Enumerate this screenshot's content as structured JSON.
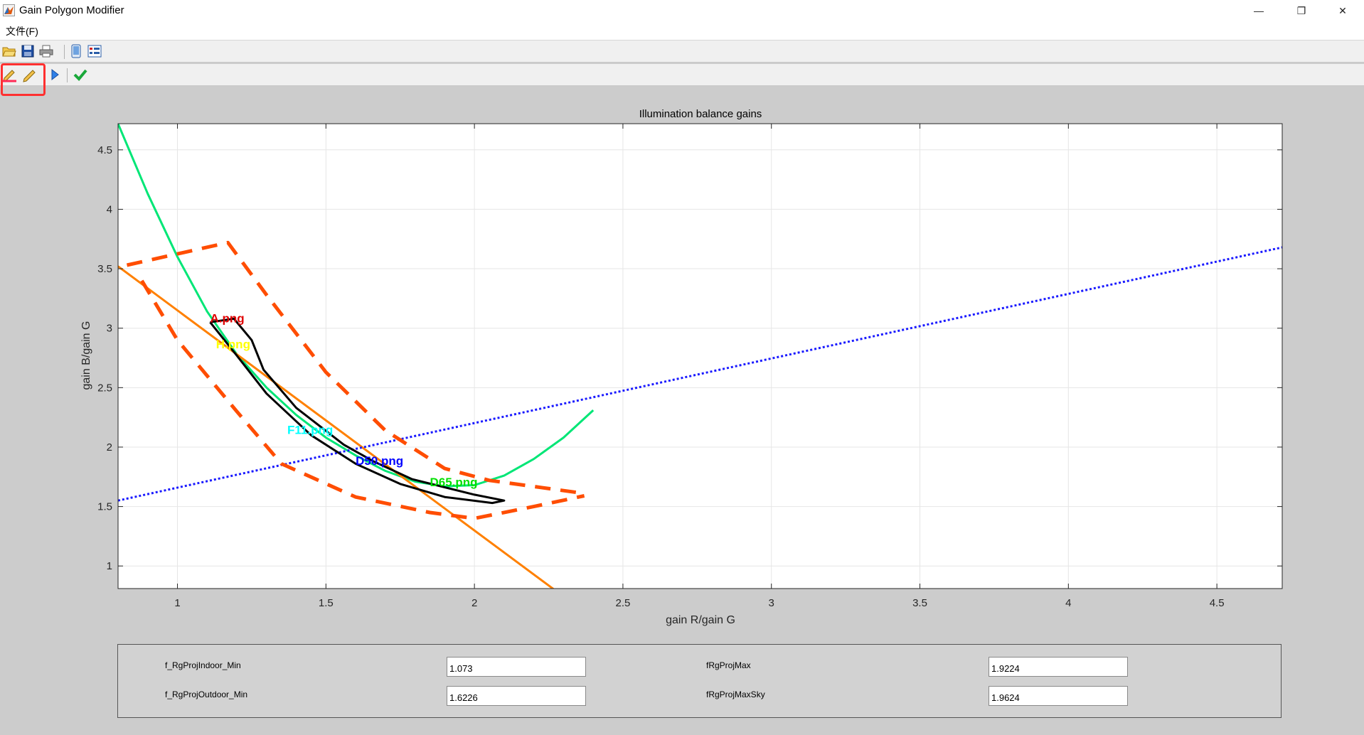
{
  "window": {
    "title": "Gain Polygon Modifier",
    "minimize": "—",
    "restore": "❐",
    "close": "✕"
  },
  "menu": {
    "file": "文件(F)"
  },
  "toolbar_row1": [
    {
      "icon": "open-folder-icon"
    },
    {
      "icon": "save-icon"
    },
    {
      "icon": "print-icon"
    },
    {
      "icon": "device-icon"
    },
    {
      "icon": "property-inspector-icon"
    }
  ],
  "toolbar_row2": [
    {
      "icon": "red-pen-icon"
    },
    {
      "icon": "yellow-pen-icon"
    },
    {
      "icon": "play-arrow-icon"
    },
    {
      "icon": "checkmark-icon"
    }
  ],
  "chart_data": {
    "type": "line",
    "title": "Illumination balance gains",
    "xlabel": "gain R/gain G",
    "ylabel": "gain B/gain G",
    "xlim": [
      0.8,
      4.72
    ],
    "ylim": [
      0.81,
      4.72
    ],
    "xticks": [
      1,
      1.5,
      2,
      2.5,
      3,
      3.5,
      4,
      4.5
    ],
    "yticks": [
      1,
      1.5,
      2,
      2.5,
      3,
      3.5,
      4,
      4.5
    ],
    "grid": true,
    "series": [
      {
        "style": "solid",
        "color": "#00e676",
        "x": [
          0.8,
          0.9,
          1.0,
          1.1,
          1.2,
          1.3,
          1.4,
          1.5,
          1.6,
          1.7,
          1.8,
          1.9,
          2.0,
          2.1,
          2.2,
          2.3,
          2.4
        ],
        "y": [
          4.72,
          4.13,
          3.6,
          3.14,
          2.78,
          2.5,
          2.27,
          2.08,
          1.93,
          1.8,
          1.71,
          1.67,
          1.68,
          1.76,
          1.9,
          2.08,
          2.31
        ]
      },
      {
        "style": "solid",
        "color": "#ff8000",
        "x": [
          0.8,
          2.28
        ],
        "y": [
          3.52,
          0.78
        ]
      },
      {
        "style": "dotted",
        "color": "#1a1aff",
        "x": [
          0.8,
          4.72
        ],
        "y": [
          1.55,
          3.68
        ]
      },
      {
        "style": "dashed",
        "color": "#ff4d00",
        "x": [
          0.83,
          1.17,
          1.3,
          1.5,
          1.7,
          1.9,
          2.05,
          2.37
        ],
        "y": [
          3.53,
          3.72,
          3.28,
          2.63,
          2.14,
          1.82,
          1.72,
          1.61
        ]
      },
      {
        "style": "dashed",
        "color": "#ff4d00",
        "x": [
          0.88,
          1.0,
          1.2,
          1.35,
          1.6,
          1.85,
          2.0,
          2.2,
          2.37
        ],
        "y": [
          3.4,
          2.9,
          2.3,
          1.86,
          1.58,
          1.45,
          1.4,
          1.5,
          1.59
        ]
      },
      {
        "style": "solid",
        "color": "#000000",
        "x": [
          1.11,
          1.19,
          1.25,
          1.29,
          1.4,
          1.56,
          1.66,
          1.79,
          2.0,
          2.1,
          2.06,
          1.9,
          1.75,
          1.6,
          1.45,
          1.3,
          1.2,
          1.11
        ],
        "y": [
          3.05,
          3.08,
          2.9,
          2.65,
          2.33,
          2.02,
          1.88,
          1.73,
          1.6,
          1.55,
          1.53,
          1.58,
          1.69,
          1.86,
          2.1,
          2.45,
          2.77,
          3.05
        ]
      }
    ],
    "annotations": [
      {
        "text": "A.png",
        "x": 1.11,
        "y": 3.05,
        "color": "#e00000"
      },
      {
        "text": "H.png",
        "x": 1.13,
        "y": 2.83,
        "color": "#ffff00"
      },
      {
        "text": "F11.png",
        "x": 1.37,
        "y": 2.11,
        "color": "#00ffff"
      },
      {
        "text": "D50.png",
        "x": 1.6,
        "y": 1.85,
        "color": "#0000ff"
      },
      {
        "text": "D65.png",
        "x": 1.85,
        "y": 1.67,
        "color": "#00e000"
      }
    ]
  },
  "params": {
    "rg_indoor_min_label": "f_RgProjIndoor_Min",
    "rg_indoor_min_value": "1.073",
    "rg_outdoor_min_label": "f_RgProjOutdoor_Min",
    "rg_outdoor_min_value": "1.6226",
    "rg_max_label": "fRgProjMax",
    "rg_max_value": "1.9224",
    "rg_max_sky_label": "fRgProjMaxSky",
    "rg_max_sky_value": "1.9624"
  }
}
